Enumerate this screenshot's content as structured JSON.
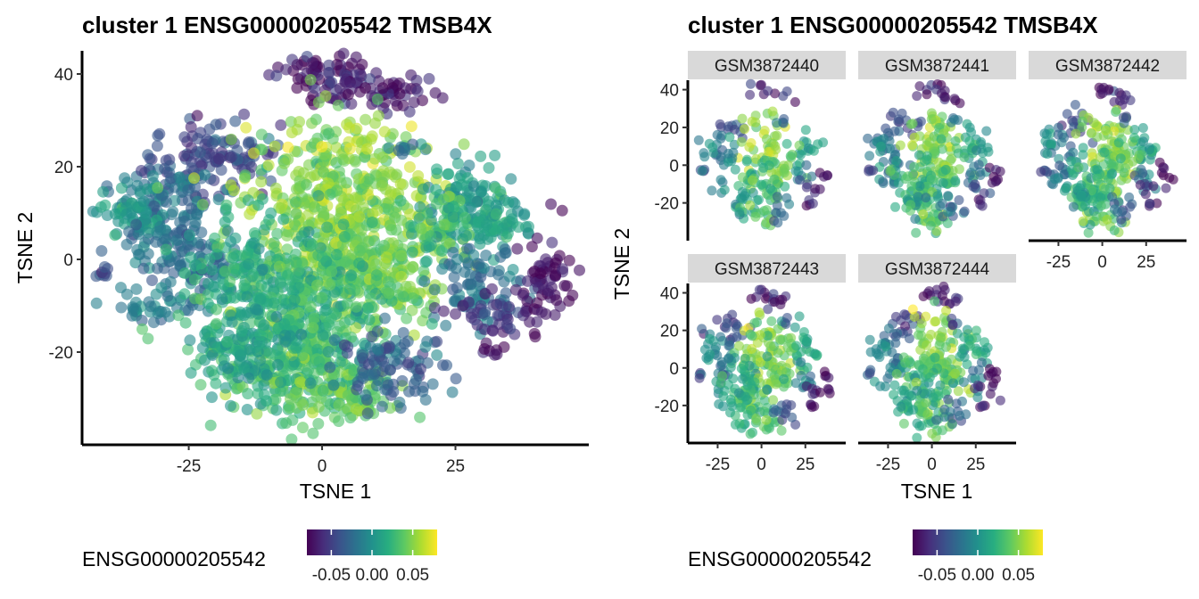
{
  "chart_data": [
    {
      "type": "scatter",
      "title": "cluster 1 ENSG00000205542 TMSB4X",
      "xlabel": "TSNE 1",
      "ylabel": "TSNE 2",
      "xlim": [
        -45,
        50
      ],
      "ylim": [
        -40,
        45
      ],
      "xticks": [
        -25,
        0,
        25
      ],
      "yticks": [
        -20,
        0,
        20,
        40
      ],
      "color_variable": "ENSG00000205542",
      "colormap": "viridis",
      "color_range": [
        -0.08,
        0.08
      ],
      "legend": {
        "title": "ENSG00000205542",
        "ticks": [
          "-0.05",
          "0.00",
          "0.05"
        ],
        "position": "bottom"
      },
      "clusters": [
        {
          "x": 0,
          "y": 40,
          "sx": 5,
          "sy": 2.5,
          "color": -0.07
        },
        {
          "x": 11,
          "y": 36,
          "sx": 6,
          "sy": 2,
          "color": -0.065
        },
        {
          "x": -20,
          "y": 22,
          "sx": 6,
          "sy": 4,
          "color": -0.045
        },
        {
          "x": -30,
          "y": 12,
          "sx": 5,
          "sy": 4,
          "color": -0.02
        },
        {
          "x": -36,
          "y": 10,
          "sx": 3,
          "sy": 4,
          "color": 0.0
        },
        {
          "x": 3,
          "y": 14,
          "sx": 9,
          "sy": 9,
          "color": 0.05
        },
        {
          "x": 6,
          "y": 0,
          "sx": 8,
          "sy": 5,
          "color": 0.045
        },
        {
          "x": 12,
          "y": -6,
          "sx": 5,
          "sy": 4,
          "color": 0.04
        },
        {
          "x": 27,
          "y": 12,
          "sx": 4,
          "sy": 6,
          "color": 0.01
        },
        {
          "x": 34,
          "y": 8,
          "sx": 3,
          "sy": 3,
          "color": 0.01
        },
        {
          "x": 22,
          "y": 8,
          "sx": 3,
          "sy": 3,
          "color": 0.03
        },
        {
          "x": 29,
          "y": -6,
          "sx": 4,
          "sy": 4,
          "color": -0.02
        },
        {
          "x": 33,
          "y": -12,
          "sx": 4,
          "sy": 2,
          "color": -0.06
        },
        {
          "x": 42,
          "y": -6,
          "sx": 2.5,
          "sy": 5,
          "color": -0.075
        },
        {
          "x": -25,
          "y": 0,
          "sx": 5,
          "sy": 4,
          "color": -0.02
        },
        {
          "x": -30,
          "y": -10,
          "sx": 4,
          "sy": 2,
          "color": -0.01
        },
        {
          "x": -8,
          "y": -8,
          "sx": 9,
          "sy": 8,
          "color": 0.02
        },
        {
          "x": -4,
          "y": -22,
          "sx": 7,
          "sy": 7,
          "color": 0.03
        },
        {
          "x": 3,
          "y": -30,
          "sx": 5,
          "sy": 3,
          "color": 0.04
        },
        {
          "x": 13,
          "y": -23,
          "sx": 5,
          "sy": 4,
          "color": -0.03
        },
        {
          "x": -14,
          "y": -18,
          "sx": 5,
          "sy": 5,
          "color": 0.01
        },
        {
          "x": -41,
          "y": -3,
          "sx": 1.5,
          "sy": 1,
          "color": -0.03
        },
        {
          "x": 33,
          "y": -20,
          "sx": 1.5,
          "sy": 1,
          "color": -0.07
        },
        {
          "x": 15,
          "y": 24,
          "sx": 1.5,
          "sy": 1,
          "color": -0.03
        }
      ]
    },
    {
      "type": "scatter",
      "title": "cluster 1 ENSG00000205542 TMSB4X",
      "xlabel": "TSNE 1",
      "ylabel": "TSNE 2",
      "xlim": [
        -42,
        48
      ],
      "ylim": [
        -40,
        45
      ],
      "xticks": [
        -25,
        0,
        25
      ],
      "yticks": [
        -20,
        0,
        20,
        40
      ],
      "color_variable": "ENSG00000205542",
      "colormap": "viridis",
      "color_range": [
        -0.08,
        0.08
      ],
      "legend": {
        "title": "ENSG00000205542",
        "ticks": [
          "-0.05",
          "0.00",
          "0.05"
        ],
        "position": "bottom"
      },
      "facets": [
        "GSM3872440",
        "GSM3872441",
        "GSM3872442",
        "GSM3872443",
        "GSM3872444"
      ]
    }
  ]
}
